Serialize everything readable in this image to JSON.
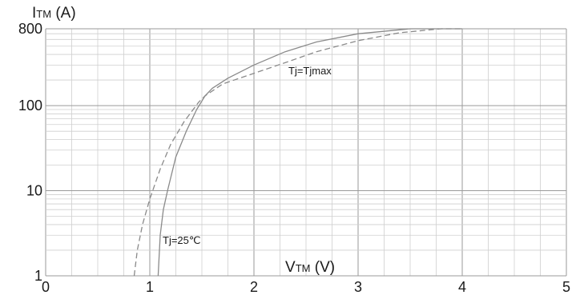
{
  "chart_data": {
    "type": "line",
    "ylabel": {
      "main": "I",
      "sub": "TM",
      "unit": " (A)"
    },
    "xlabel": {
      "main": "V",
      "sub": "TM",
      "unit": " (V)"
    },
    "xlim": [
      0,
      5
    ],
    "ylim": [
      1,
      800
    ],
    "yscale": "log",
    "grid": true,
    "x_ticks": [
      {
        "value": 0,
        "label": "0"
      },
      {
        "value": 1,
        "label": "1"
      },
      {
        "value": 2,
        "label": "2"
      },
      {
        "value": 3,
        "label": "3"
      },
      {
        "value": 4,
        "label": "4"
      },
      {
        "value": 5,
        "label": "5"
      }
    ],
    "y_ticks": [
      {
        "value": 1,
        "label": "1"
      },
      {
        "value": 10,
        "label": "10"
      },
      {
        "value": 100,
        "label": "100"
      },
      {
        "value": 800,
        "label": "800"
      }
    ],
    "series": [
      {
        "name": "Tj=25℃",
        "style": "solid",
        "points": [
          [
            1.08,
            1
          ],
          [
            1.1,
            3
          ],
          [
            1.13,
            6
          ],
          [
            1.17,
            10
          ],
          [
            1.25,
            25
          ],
          [
            1.35,
            50
          ],
          [
            1.45,
            90
          ],
          [
            1.53,
            130
          ],
          [
            1.6,
            160
          ],
          [
            1.75,
            210
          ],
          [
            2.0,
            300
          ],
          [
            2.3,
            430
          ],
          [
            2.6,
            560
          ],
          [
            3.0,
            700
          ],
          [
            3.5,
            800
          ],
          [
            4.0,
            830
          ]
        ]
      },
      {
        "name": "Tj=Tjmax",
        "style": "dashed",
        "points": [
          [
            0.85,
            1
          ],
          [
            0.88,
            2
          ],
          [
            0.93,
            4
          ],
          [
            1.0,
            8
          ],
          [
            1.1,
            18
          ],
          [
            1.2,
            35
          ],
          [
            1.33,
            65
          ],
          [
            1.47,
            110
          ],
          [
            1.53,
            130
          ],
          [
            1.7,
            180
          ],
          [
            2.0,
            240
          ],
          [
            2.3,
            320
          ],
          [
            2.6,
            430
          ],
          [
            3.0,
            580
          ],
          [
            3.4,
            720
          ],
          [
            3.8,
            800
          ],
          [
            4.0,
            820
          ]
        ]
      }
    ],
    "annotations": [
      {
        "text": "Tj=Tjmax",
        "series": 1
      },
      {
        "text": "Tj=25℃",
        "series": 0
      }
    ]
  }
}
